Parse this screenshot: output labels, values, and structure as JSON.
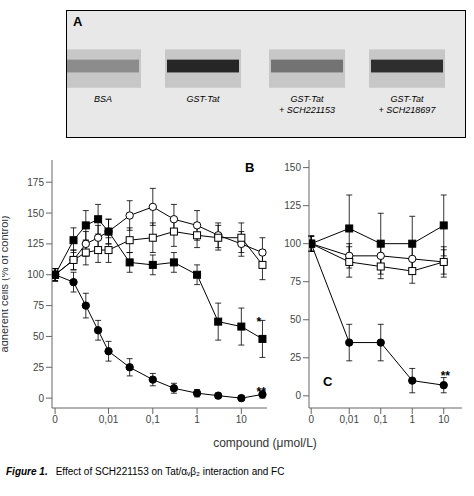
{
  "chart_data": [
    {
      "type": "gel",
      "title": "A",
      "categories": [
        "BSA",
        "GST-Tat",
        "GST-Tat\n+ SCH221153",
        "GST-Tat\n+ SCH218697"
      ],
      "colors": [
        "#8c8c8c",
        "#262626",
        "#737373",
        "#2e2e2e"
      ]
    },
    {
      "type": "line",
      "title": "B",
      "log": "x",
      "xlabel": "compound (μmol/L)",
      "ylabel": "adherent cells (% of control)",
      "x": [
        0,
        0.003,
        0.005,
        0.007,
        0.01,
        0.03,
        0.1,
        0.3,
        1,
        3,
        10,
        30
      ],
      "xlim": [
        -0.0005,
        38
      ],
      "xticks": [
        0,
        {
          "value": 0.01,
          "label": "0,01"
        },
        {
          "value": 0.1,
          "label": "0,1"
        },
        1,
        10
      ],
      "ylim": [
        -8,
        193
      ],
      "yticks": [
        0,
        25,
        50,
        75,
        100,
        125,
        150,
        175
      ],
      "series": [
        {
          "marker": "circle_open",
          "color": "#000000",
          "values": [
            100,
            112,
            125,
            130,
            135,
            148,
            155,
            145,
            140,
            132,
            125,
            118
          ],
          "errors": [
            5,
            8,
            10,
            10,
            10,
            12,
            15,
            12,
            12,
            10,
            10,
            12
          ]
        },
        {
          "marker": "square_open",
          "color": "#000000",
          "values": [
            100,
            112,
            118,
            120,
            120,
            128,
            130,
            135,
            132,
            130,
            130,
            108
          ],
          "errors": [
            5,
            8,
            10,
            10,
            10,
            10,
            12,
            12,
            10,
            10,
            12,
            12
          ]
        },
        {
          "marker": "square",
          "color": "#000000",
          "values": [
            100,
            128,
            140,
            145,
            135,
            110,
            108,
            110,
            100,
            62,
            58,
            48
          ],
          "errors": [
            5,
            10,
            12,
            12,
            10,
            8,
            8,
            8,
            8,
            15,
            15,
            15
          ]
        },
        {
          "marker": "circle",
          "color": "#000000",
          "values": [
            100,
            94,
            75,
            55,
            38,
            25,
            15,
            8,
            4,
            2,
            0,
            3
          ],
          "errors": [
            5,
            8,
            10,
            8,
            8,
            7,
            5,
            4,
            3,
            2,
            2,
            3
          ]
        }
      ],
      "annotations": [
        {
          "text": "*",
          "x": 22,
          "y": 62
        },
        {
          "text": "**",
          "x": 22,
          "y": 5
        }
      ]
    },
    {
      "type": "line",
      "title": "C",
      "log": "x",
      "x": [
        0,
        0.01,
        0.1,
        1,
        10
      ],
      "xlim": [
        -0.0005,
        38
      ],
      "xticks": [
        0,
        {
          "value": 0.01,
          "label": "0,01"
        },
        {
          "value": 0.1,
          "label": "0,1"
        },
        1,
        10
      ],
      "ylim": [
        -8,
        155
      ],
      "yticks": [
        0,
        25,
        50,
        75,
        100,
        125,
        150
      ],
      "series": [
        {
          "marker": "circle_open",
          "color": "#000000",
          "values": [
            100,
            92,
            92,
            90,
            88
          ],
          "errors": [
            5,
            8,
            8,
            8,
            10
          ]
        },
        {
          "marker": "square_open",
          "color": "#000000",
          "values": [
            100,
            88,
            85,
            82,
            88
          ],
          "errors": [
            5,
            10,
            8,
            8,
            8
          ]
        },
        {
          "marker": "square",
          "color": "#000000",
          "values": [
            100,
            110,
            100,
            100,
            112
          ],
          "errors": [
            5,
            22,
            20,
            18,
            20
          ]
        },
        {
          "marker": "circle",
          "color": "#000000",
          "values": [
            100,
            35,
            35,
            10,
            7
          ],
          "errors": [
            5,
            12,
            12,
            8,
            5
          ]
        }
      ],
      "annotations": [
        {
          "text": "**",
          "x": 8,
          "y": 13
        },
        {
          "text": "Figure 1."
        },
        {
          "text": "Effect of SCH221153 on Tat/αᵥβ₂ interaction and FC"
        }
      ]
    }
  ]
}
